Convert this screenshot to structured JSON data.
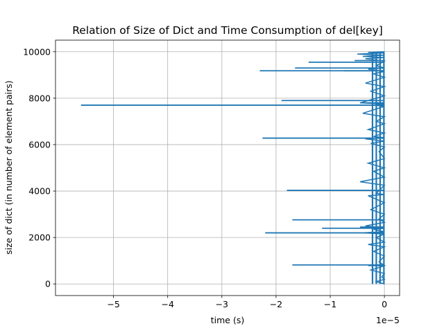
{
  "colors": {
    "line": "#1f77b4",
    "grid": "#b0b0b0",
    "axes": "#000000",
    "background": "#ffffff"
  },
  "chart_data": {
    "type": "line",
    "title": "Relation of Size of Dict and Time Consumption of del[key]",
    "xlabel": "time (s)",
    "ylabel": "size of dict (in number of element pairs)",
    "x_offset_label": "1e−5",
    "xlim": [
      -6.07,
      0.28
    ],
    "ylim": [
      -500,
      10500
    ],
    "x_ticks": [
      -5,
      -4,
      -3,
      -2,
      -1,
      0
    ],
    "x_tick_labels": [
      "−5",
      "−4",
      "−3",
      "−2",
      "−1",
      "0"
    ],
    "y_ticks": [
      0,
      2000,
      4000,
      6000,
      8000,
      10000
    ],
    "y_tick_labels": [
      "0",
      "2000",
      "4000",
      "6000",
      "8000",
      "10000"
    ],
    "grid": true,
    "legend": "none",
    "series": [
      {
        "x": [
          0,
          -0.15,
          0,
          -0.05,
          0,
          -0.25,
          0,
          -0.3,
          0,
          -0.1,
          0,
          -0.2,
          0,
          -0.3,
          0,
          -0.15,
          0,
          -0.4,
          0,
          -0.2,
          0,
          -0.35,
          0,
          -0.1,
          0,
          -0.25,
          0,
          -0.3,
          0,
          -0.15,
          0,
          -0.45,
          0,
          -0.2,
          0,
          -0.3,
          0,
          -0.1,
          0,
          -0.25,
          0,
          -0.35,
          0,
          -0.2,
          0,
          -0.3,
          0,
          -0.15,
          0,
          -0.4,
          0,
          -0.2,
          0,
          -0.45,
          0,
          -0.25,
          0,
          -0.35,
          0,
          -0.2,
          0,
          -0.3,
          0,
          -0.15,
          0,
          -0.35,
          0,
          -0.4,
          0,
          -0.5,
          0,
          -0.3,
          0
        ],
        "y": [
          0,
          100,
          200,
          300,
          450,
          600,
          780,
          790,
          800,
          950,
          1200,
          1400,
          1600,
          1700,
          1800,
          2000,
          2150,
          2200,
          2250,
          2350,
          2400,
          2500,
          2650,
          2800,
          3000,
          3200,
          3500,
          3800,
          3850,
          3900,
          4250,
          4400,
          4600,
          4850,
          5000,
          5200,
          5400,
          5700,
          5900,
          6050,
          6150,
          6250,
          6300,
          6350,
          6500,
          6650,
          6900,
          7000,
          7200,
          7350,
          7650,
          7700,
          7750,
          7800,
          8100,
          8300,
          8500,
          8650,
          8900,
          9050,
          9150,
          9250,
          9300,
          9400,
          9600,
          9700,
          9750,
          9800,
          9850,
          9900,
          9950,
          9980,
          10000
        ]
      },
      {
        "x": [
          -5.6,
          -2.3,
          -2.25,
          -2.2,
          -1.9,
          -1.8,
          -1.7,
          -1.7,
          -1.65,
          -1.4,
          -1.15,
          -0.75,
          -0.55,
          -0.45,
          -0.42
        ],
        "y": [
          7700,
          9180,
          6280,
          2200,
          7900,
          4030,
          820,
          2760,
          9300,
          9550,
          2400,
          9180,
          9620,
          2450,
          7800
        ]
      }
    ]
  }
}
